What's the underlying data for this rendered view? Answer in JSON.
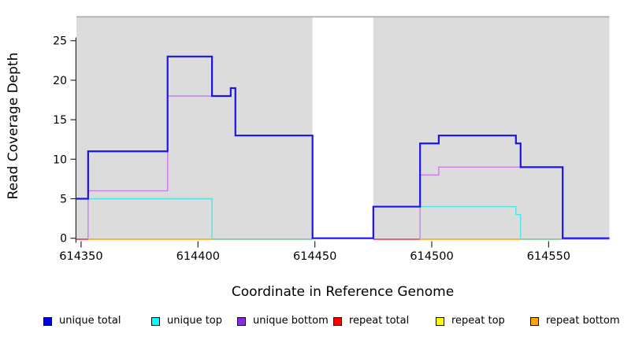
{
  "chart_data": {
    "type": "line",
    "subtype": "step-coverage-plot",
    "title": "",
    "xlabel": "Coordinate in Reference Genome",
    "ylabel": "Read Coverage Depth",
    "xlim": [
      614348,
      614576
    ],
    "ylim": [
      0,
      28
    ],
    "x_ticks": [
      614350,
      614400,
      614450,
      614500,
      614550
    ],
    "y_ticks": [
      0,
      5,
      10,
      15,
      20,
      25
    ],
    "grid": false,
    "legend_position": "bottom",
    "colors": {
      "region_fill": "#dcdcdc",
      "region_top_line": "#ababab",
      "axis": "#2b2b2b",
      "tick_text": "#000000"
    },
    "background_regions": [
      {
        "from": 614348,
        "to": 614449,
        "note": "gray shaded covered region"
      },
      {
        "from": 614475,
        "to": 614576,
        "note": "gray shaded covered region"
      }
    ],
    "gap_region": {
      "from": 614449,
      "to": 614475,
      "note": "white gap spanned by gray line at top"
    },
    "series": [
      {
        "name": "unique total",
        "color": "#1c13ec",
        "width": 2.2,
        "style": "step",
        "points": [
          [
            614348,
            5
          ],
          [
            614353,
            11
          ],
          [
            614387,
            23
          ],
          [
            614406,
            18
          ],
          [
            614414,
            19
          ],
          [
            614416,
            13
          ],
          [
            614449,
            0
          ],
          [
            614475,
            4
          ],
          [
            614495,
            12
          ],
          [
            614503,
            13
          ],
          [
            614536,
            12
          ],
          [
            614538,
            9
          ],
          [
            614556,
            0
          ],
          [
            614576,
            0
          ]
        ]
      },
      {
        "name": "unique top",
        "color": "#4fe3e3",
        "width": 1.4,
        "style": "step",
        "segments": [
          [
            [
              614348,
              5
            ],
            [
              614406,
              0
            ]
          ],
          [
            [
              614475,
              0
            ],
            [
              614475,
              4
            ],
            [
              614536,
              3
            ],
            [
              614538,
              0
            ]
          ]
        ]
      },
      {
        "name": "unique bottom",
        "color": "#c77fe8",
        "width": 1.4,
        "style": "step",
        "segments": [
          [
            [
              614353,
              0
            ],
            [
              614353,
              6
            ],
            [
              614387,
              18
            ],
            [
              614414,
              19
            ],
            [
              614416,
              13
            ],
            [
              614449,
              0
            ]
          ],
          [
            [
              614495,
              0
            ],
            [
              614495,
              8
            ],
            [
              614503,
              9
            ],
            [
              614556,
              0
            ]
          ]
        ]
      },
      {
        "name": "repeat total",
        "color": "#e23a4e",
        "width": 1.6,
        "style": "constant-zero",
        "points": [
          [
            614348,
            0
          ],
          [
            614576,
            0
          ]
        ]
      },
      {
        "name": "repeat top",
        "color": "#ffff00",
        "width": 1.6,
        "style": "constant-zero",
        "points": [
          [
            614348,
            0
          ],
          [
            614576,
            0
          ]
        ]
      },
      {
        "name": "repeat bottom",
        "color": "#ffa500",
        "width": 1.6,
        "style": "constant-zero",
        "points": [
          [
            614348,
            0
          ],
          [
            614576,
            0
          ]
        ]
      }
    ],
    "baseline_segments_note": "visible colors of the overlapping zero-depth lines along y=0",
    "baseline_segments": [
      {
        "x1": 614348,
        "x2": 614353,
        "color": "#e23a4e"
      },
      {
        "x1": 614353,
        "x2": 614406,
        "color": "#ffa500"
      },
      {
        "x1": 614406,
        "x2": 614449,
        "color": "#6ec793"
      },
      {
        "x1": 614475,
        "x2": 614495,
        "color": "#e23a4e"
      },
      {
        "x1": 614495,
        "x2": 614538,
        "color": "#ffa500"
      },
      {
        "x1": 614538,
        "x2": 614556,
        "color": "#6ec793"
      },
      {
        "x1": 614556,
        "x2": 614576,
        "color": "#c7abef"
      }
    ]
  },
  "legend": {
    "items": [
      {
        "label": "unique total",
        "color": "#0000e6"
      },
      {
        "label": "unique top",
        "color": "#00ffff"
      },
      {
        "label": "unique bottom",
        "color": "#8a2be2"
      },
      {
        "label": "repeat total",
        "color": "#ff0000"
      },
      {
        "label": "repeat top",
        "color": "#ffff00"
      },
      {
        "label": "repeat bottom",
        "color": "#ffa500"
      }
    ]
  }
}
